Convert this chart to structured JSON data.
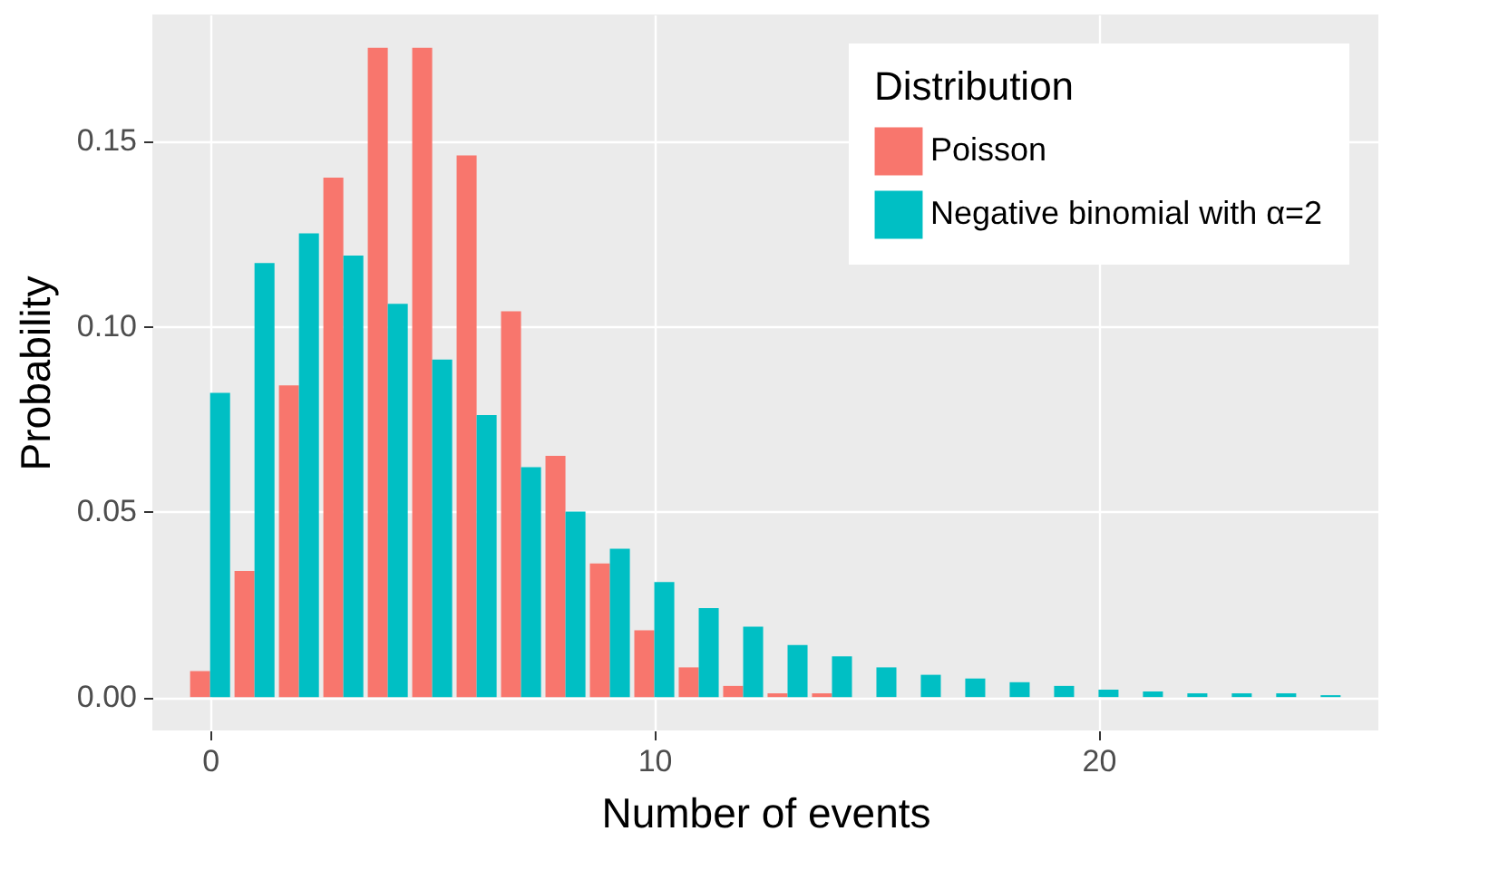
{
  "chart_data": {
    "type": "bar",
    "xlabel": "Number of events",
    "ylabel": "Probability",
    "legend_title": "Distribution",
    "x": [
      0,
      1,
      2,
      3,
      4,
      5,
      6,
      7,
      8,
      9,
      10,
      11,
      12,
      13,
      14,
      15,
      16,
      17,
      18,
      19,
      20,
      21,
      22,
      23,
      24,
      25
    ],
    "series": [
      {
        "name": "Poisson",
        "color": "#f8766d",
        "values": [
          0.007,
          0.034,
          0.084,
          0.14,
          0.175,
          0.175,
          0.146,
          0.104,
          0.065,
          0.036,
          0.018,
          0.008,
          0.003,
          0.001,
          0.001,
          0,
          0,
          0,
          0,
          0,
          0,
          0,
          0,
          0,
          0,
          0
        ]
      },
      {
        "name": "Negative binomial with α=2",
        "color": "#00bfc4",
        "values": [
          0.082,
          0.117,
          0.125,
          0.119,
          0.106,
          0.091,
          0.076,
          0.062,
          0.05,
          0.04,
          0.031,
          0.024,
          0.019,
          0.014,
          0.011,
          0.008,
          0.006,
          0.005,
          0.004,
          0.003,
          0.002,
          0.0015,
          0.001,
          0.001,
          0.001,
          0.0005
        ]
      }
    ],
    "xlim": [
      -1.3,
      26.3
    ],
    "xticks": [
      0,
      10,
      20
    ],
    "ylim": [
      -0.009,
      0.184
    ],
    "yticks": [
      {
        "value": 0,
        "label": "0.00"
      },
      {
        "value": 0.05,
        "label": "0.05"
      },
      {
        "value": 0.1,
        "label": "0.10"
      },
      {
        "value": 0.15,
        "label": "0.15"
      }
    ],
    "grid": true,
    "legend": "top right"
  }
}
